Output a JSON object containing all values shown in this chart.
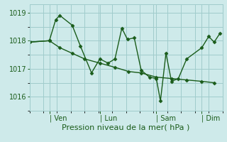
{
  "bg_color": "#ceeaea",
  "grid_color": "#a0cccc",
  "line_color": "#1a5c1a",
  "marker_color": "#1a5c1a",
  "xlabel": "Pression niveau de la mer( hPa )",
  "ylim": [
    1015.5,
    1019.3
  ],
  "yticks": [
    1016,
    1017,
    1018,
    1019
  ],
  "xlim": [
    0,
    7.0
  ],
  "day_labels": [
    "| Ven",
    "| Lun",
    "| Sam",
    "| Dim"
  ],
  "day_positions": [
    0.72,
    2.55,
    4.6,
    6.25
  ],
  "num_vgrid": 14,
  "line1_x": [
    0.0,
    0.72,
    0.95,
    1.1,
    1.55,
    1.85,
    2.25,
    2.55,
    2.85,
    3.1,
    3.35,
    3.55,
    3.8,
    4.05,
    4.35,
    4.6,
    4.75,
    4.95,
    5.15,
    5.4,
    5.7,
    6.25,
    6.5,
    6.7,
    6.9
  ],
  "line1_y": [
    1017.95,
    1018.0,
    1018.75,
    1018.9,
    1018.55,
    1017.8,
    1016.85,
    1017.35,
    1017.2,
    1017.35,
    1018.45,
    1018.05,
    1018.1,
    1016.95,
    1016.7,
    1016.65,
    1015.85,
    1017.55,
    1016.55,
    1016.65,
    1017.35,
    1017.75,
    1018.15,
    1017.95,
    1018.25
  ],
  "line2_x": [
    0.0,
    0.72,
    1.1,
    1.55,
    2.0,
    2.55,
    3.1,
    3.6,
    4.05,
    4.6,
    5.15,
    5.7,
    6.25,
    6.7
  ],
  "line2_y": [
    1017.95,
    1018.0,
    1017.75,
    1017.55,
    1017.35,
    1017.2,
    1017.05,
    1016.9,
    1016.85,
    1016.7,
    1016.65,
    1016.6,
    1016.55,
    1016.5
  ]
}
